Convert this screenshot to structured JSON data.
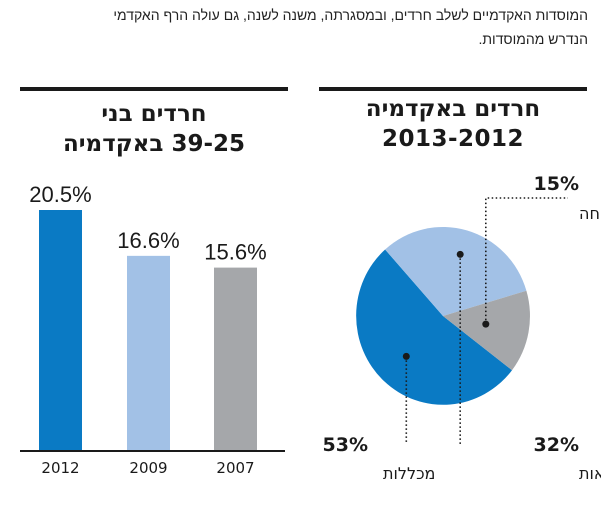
{
  "intro": {
    "line1": "המוסדות האקדמיים לשלב חרדים, ובמסגרתה, משנה לשנה, גם עולה הרף האקדמי",
    "line2": "הנדרש מהמוסדות."
  },
  "colors": {
    "dark_blue": "#0a7ac4",
    "light_blue": "#a2c1e6",
    "gray": "#a5a7aa",
    "rule": "#1a1a1a"
  },
  "chart_data": [
    {
      "type": "pie",
      "title_line1": "חרדים באקדמיה",
      "title_line2": "2013-2012",
      "slices": [
        {
          "label": "מכללות",
          "value": 53,
          "value_label": "53%",
          "color": "#0a7ac4"
        },
        {
          "label": "אוניברסיטאות",
          "value": 32,
          "value_label": "32%",
          "color": "#a2c1e6"
        },
        {
          "label": "אונ׳ פתוחה",
          "value": 15,
          "value_label": "15%",
          "color": "#a5a7aa"
        }
      ]
    },
    {
      "type": "bar",
      "title_line1": "חרדים בני",
      "title_line2": "39-25 באקדמיה",
      "categories": [
        "2012",
        "2009",
        "2007"
      ],
      "values": [
        20.5,
        16.6,
        15.6
      ],
      "value_labels": [
        "20.5%",
        "16.6%",
        "15.6%"
      ],
      "colors": [
        "#0a7ac4",
        "#a2c1e6",
        "#a5a7aa"
      ],
      "ylim": [
        0,
        20.5
      ]
    }
  ]
}
